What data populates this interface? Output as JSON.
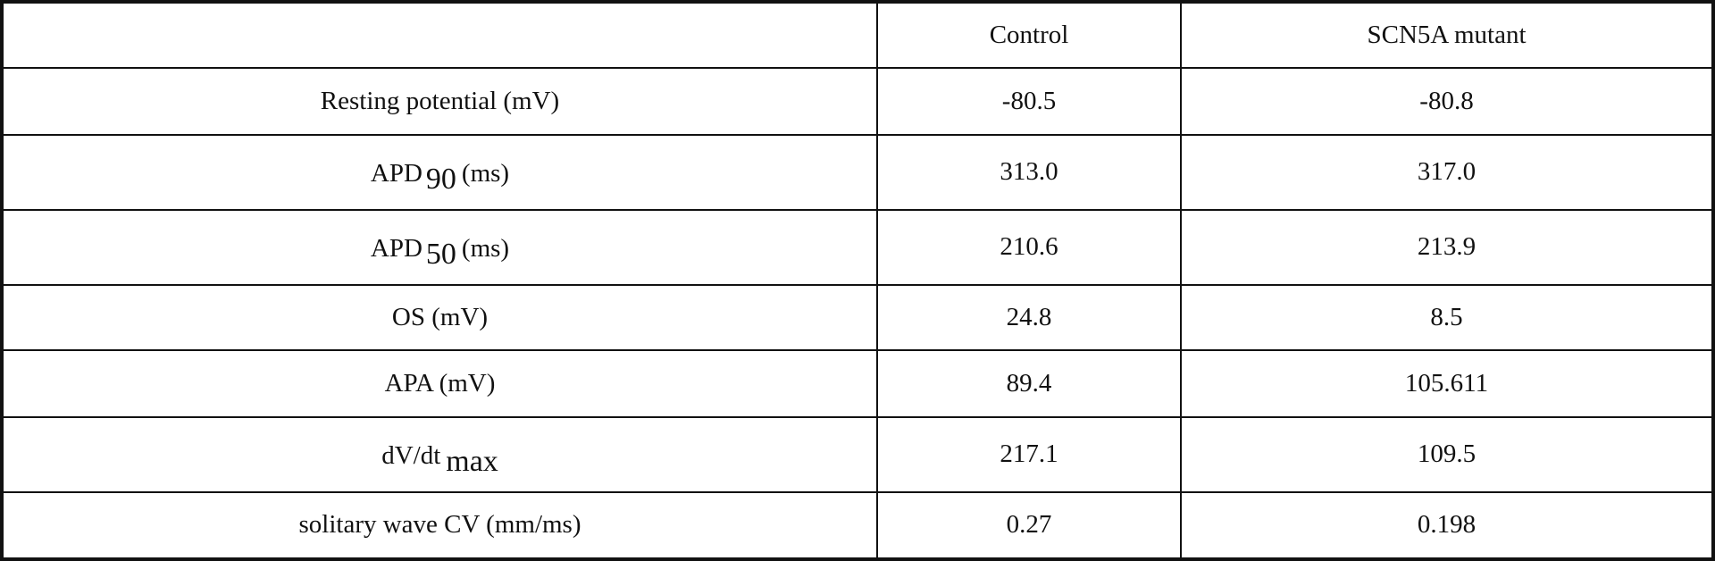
{
  "table": {
    "header": {
      "corner": "",
      "col_control": "Control",
      "col_mutant": "SCN5A mutant"
    },
    "rows": [
      {
        "label": "Resting potential (mV)",
        "control": "-80.5",
        "mutant": "-80.8"
      },
      {
        "label_main": "APD",
        "label_sub": "90",
        "label_unit": "(ms)",
        "control": "313.0",
        "mutant": "317.0"
      },
      {
        "label_main": "APD",
        "label_sub": "50",
        "label_unit": "(ms)",
        "control": "210.6",
        "mutant": "213.9"
      },
      {
        "label": "OS (mV)",
        "control": "24.8",
        "mutant": "8.5"
      },
      {
        "label": "APA (mV)",
        "control": "89.4",
        "mutant": "105.611"
      },
      {
        "label_main": "dV/dt",
        "label_sub": "max",
        "control": "217.1",
        "mutant": "109.5"
      },
      {
        "label": "solitary wave CV (mm/ms)",
        "control": "0.27",
        "mutant": "0.198"
      }
    ]
  }
}
